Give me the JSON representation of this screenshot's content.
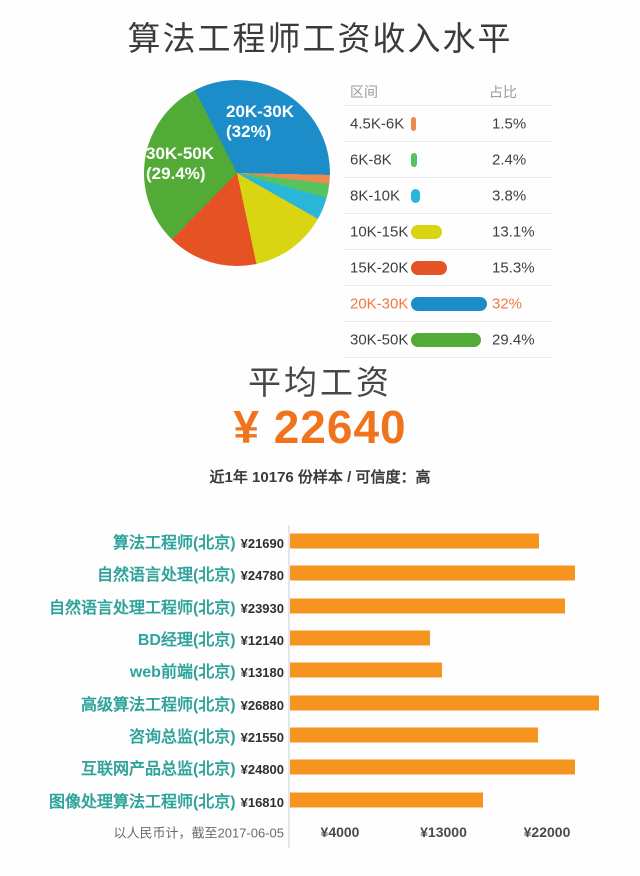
{
  "page": {
    "title": "算法工程师工资收入水平",
    "background": "#ffffff"
  },
  "average": {
    "heading": "平均工资",
    "amount": "¥ 22640",
    "note": "近1年 10176 份样本 / 可信度：高",
    "accent_color": "#f0741c"
  },
  "chart_data": [
    {
      "type": "pie",
      "title": "",
      "categories": [
        "4.5K-6K",
        "6K-8K",
        "8K-10K",
        "10K-15K",
        "15K-20K",
        "20K-30K",
        "30K-50K"
      ],
      "values": [
        1.5,
        2.4,
        3.8,
        13.1,
        15.3,
        32,
        29.4
      ],
      "unit": "%",
      "value_labels": [
        "1.5%",
        "2.4%",
        "3.8%",
        "13.1%",
        "15.3%",
        "32%",
        "29.4%"
      ],
      "colors": [
        "#ee8a4d",
        "#55c45e",
        "#2ab6d9",
        "#d9d513",
        "#e55325",
        "#1c8dc9",
        "#53ab37"
      ],
      "highlight_category": "20K-30K",
      "highlight_color": "#f0793f",
      "legend_header": {
        "range": "区间",
        "share": "占比"
      },
      "legend_position": "right",
      "clockwise_order": [
        5,
        0,
        1,
        2,
        3,
        4,
        6
      ],
      "start_angle_deg": -27,
      "pie_labels": [
        {
          "lines": [
            "20K-30K",
            "(32%)"
          ]
        },
        {
          "lines": [
            "30K-50K",
            "(29.4%)"
          ]
        }
      ]
    },
    {
      "type": "bar",
      "orientation": "horizontal",
      "categories": [
        "算法工程师(北京)",
        "自然语言处理(北京)",
        "自然语言处理工程师(北京)",
        "BD经理(北京)",
        "web前端(北京)",
        "高级算法工程师(北京)",
        "咨询总监(北京)",
        "互联网产品总监(北京)",
        "图像处理算法工程师(北京)"
      ],
      "values": [
        21690,
        24780,
        23930,
        12140,
        13180,
        26880,
        21550,
        24800,
        16810
      ],
      "value_labels": [
        "¥21690",
        "¥24780",
        "¥23930",
        "¥12140",
        "¥13180",
        "¥26880",
        "¥21550",
        "¥24800",
        "¥16810"
      ],
      "bar_color": "#f5941f",
      "label_color": "#2fa39b",
      "x_ticks": {
        "values": [
          4000,
          13000,
          22000
        ],
        "labels": [
          "¥4000",
          "¥13000",
          "¥22000"
        ]
      },
      "xlim": [
        0,
        28000
      ],
      "grid": false,
      "footnote": "以人民币计，截至2017-06-05"
    }
  ]
}
